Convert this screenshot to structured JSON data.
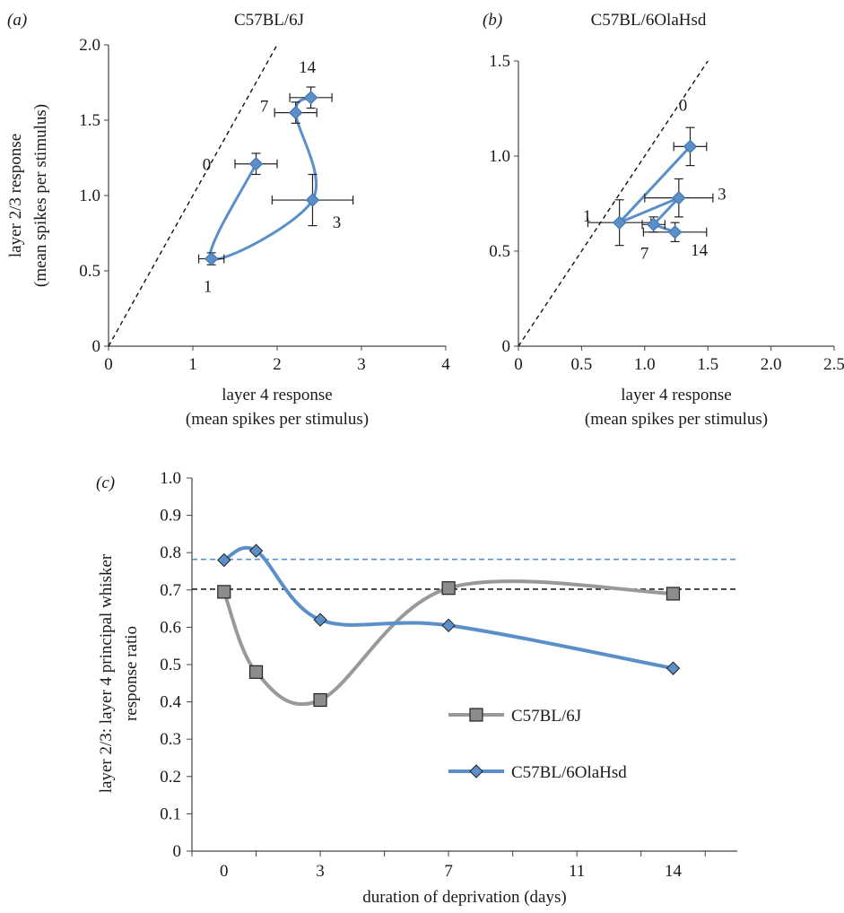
{
  "chart_data": [
    {
      "type": "scatter",
      "panel": "(a)",
      "title": "C57BL/6J",
      "xlabel": [
        "layer 4 response",
        "(mean spikes per stimulus)"
      ],
      "ylabel": [
        "layer 2/3 response",
        "(mean spikes per stimulus)"
      ],
      "xlim": [
        0,
        4
      ],
      "ylim": [
        0,
        2.0
      ],
      "xticks": [
        "0",
        "1",
        "2",
        "3",
        "4"
      ],
      "yticks": [
        "0",
        "0.5",
        "1.0",
        "1.5",
        "2.0"
      ],
      "series": [
        {
          "color": "#5b8fc9",
          "points": [
            {
              "label": "0",
              "x": 1.75,
              "y": 1.21,
              "xerr": 0.25,
              "yerr": 0.07
            },
            {
              "label": "1",
              "x": 1.22,
              "y": 0.58,
              "xerr": 0.15,
              "yerr": 0.04
            },
            {
              "label": "3",
              "x": 2.42,
              "y": 0.97,
              "xerr": 0.48,
              "yerr": 0.17
            },
            {
              "label": "7",
              "x": 2.22,
              "y": 1.55,
              "xerr": 0.25,
              "yerr": 0.07
            },
            {
              "label": "14",
              "x": 2.4,
              "y": 1.65,
              "xerr": 0.25,
              "yerr": 0.07
            }
          ]
        }
      ],
      "reference_line": "y = x"
    },
    {
      "type": "scatter",
      "panel": "(b)",
      "title": "C57BL/6OlaHsd",
      "xlabel": [
        "layer 4 response",
        "(mean spikes per stimulus)"
      ],
      "ylabel": [],
      "xlim": [
        0,
        2.5
      ],
      "ylim": [
        0,
        1.5
      ],
      "xticks": [
        "0",
        "0.5",
        "1.0",
        "1.5",
        "2.0",
        "2.5"
      ],
      "yticks": [
        "0",
        "0.5",
        "1.0",
        "1.5"
      ],
      "series": [
        {
          "color": "#5b8fc9",
          "points": [
            {
              "label": "0",
              "x": 1.36,
              "y": 1.05,
              "xerr": 0.13,
              "yerr": 0.1
            },
            {
              "label": "1",
              "x": 0.8,
              "y": 0.65,
              "xerr": 0.25,
              "yerr": 0.12
            },
            {
              "label": "3",
              "x": 1.27,
              "y": 0.78,
              "xerr": 0.27,
              "yerr": 0.1
            },
            {
              "label": "7",
              "x": 1.07,
              "y": 0.64,
              "xerr": 0.09,
              "yerr": 0.04
            },
            {
              "label": "14",
              "x": 1.24,
              "y": 0.6,
              "xerr": 0.25,
              "yerr": 0.05
            }
          ]
        }
      ],
      "reference_line": "y = x"
    },
    {
      "type": "line",
      "panel": "(c)",
      "xlabel": "duration of deprivation (days)",
      "ylabel": [
        "layer 2/3: layer 4 principal whisker",
        "response ratio"
      ],
      "xlim": [
        -1,
        16
      ],
      "ylim": [
        0,
        1.0
      ],
      "xticks": [
        "0",
        "3",
        "7",
        "11",
        "14"
      ],
      "yticks": [
        "0",
        "0.1",
        "0.2",
        "0.3",
        "0.4",
        "0.5",
        "0.6",
        "0.7",
        "0.8",
        "0.9",
        "1.0"
      ],
      "legend_placement": "center-right",
      "series": [
        {
          "name": "C57BL/6J",
          "color": "#999999",
          "marker": "square",
          "x": [
            0,
            1,
            3,
            7,
            14
          ],
          "y": [
            0.695,
            0.48,
            0.405,
            0.705,
            0.69
          ],
          "reference": 0.702,
          "reference_color": "#222222"
        },
        {
          "name": "C57BL/6OlaHsd",
          "color": "#5b8fc9",
          "marker": "diamond",
          "x": [
            0,
            1,
            3,
            7,
            14
          ],
          "y": [
            0.78,
            0.805,
            0.62,
            0.605,
            0.49
          ],
          "reference": 0.782,
          "reference_color": "#5b8fc9"
        }
      ]
    }
  ]
}
